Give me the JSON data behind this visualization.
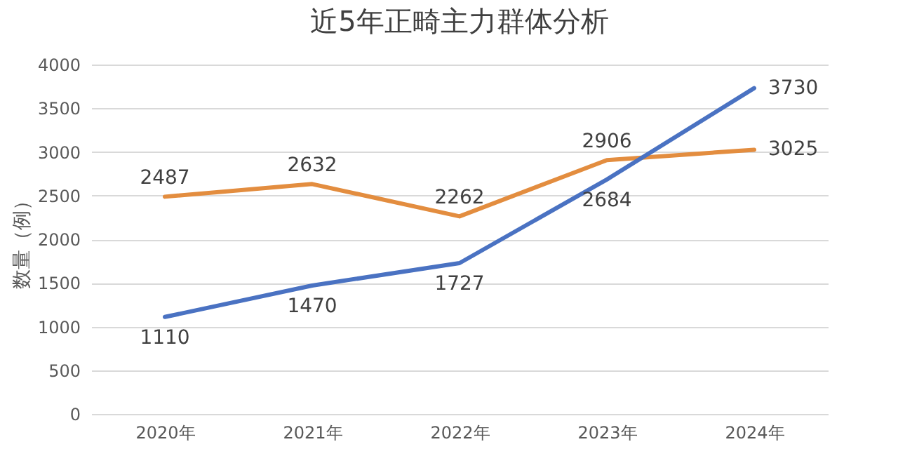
{
  "chart_data": {
    "type": "line",
    "title": "近5年正畸主力群体分析",
    "ylabel": "数量（例）",
    "categories": [
      "2020年",
      "2021年",
      "2022年",
      "2023年",
      "2024年"
    ],
    "series": [
      {
        "color": "#e38d3f",
        "values": [
          2487,
          2632,
          2262,
          2906,
          3025
        ]
      },
      {
        "color": "#4a72c2",
        "values": [
          1110,
          1470,
          1727,
          2684,
          3730
        ]
      }
    ],
    "ylim": [
      0,
      4000
    ],
    "yticks": [
      0,
      500,
      1000,
      1500,
      2000,
      2500,
      3000,
      3500,
      4000
    ],
    "grid": "y",
    "legend": false,
    "marker": "none",
    "line_style": "solid",
    "data_labels": true
  }
}
